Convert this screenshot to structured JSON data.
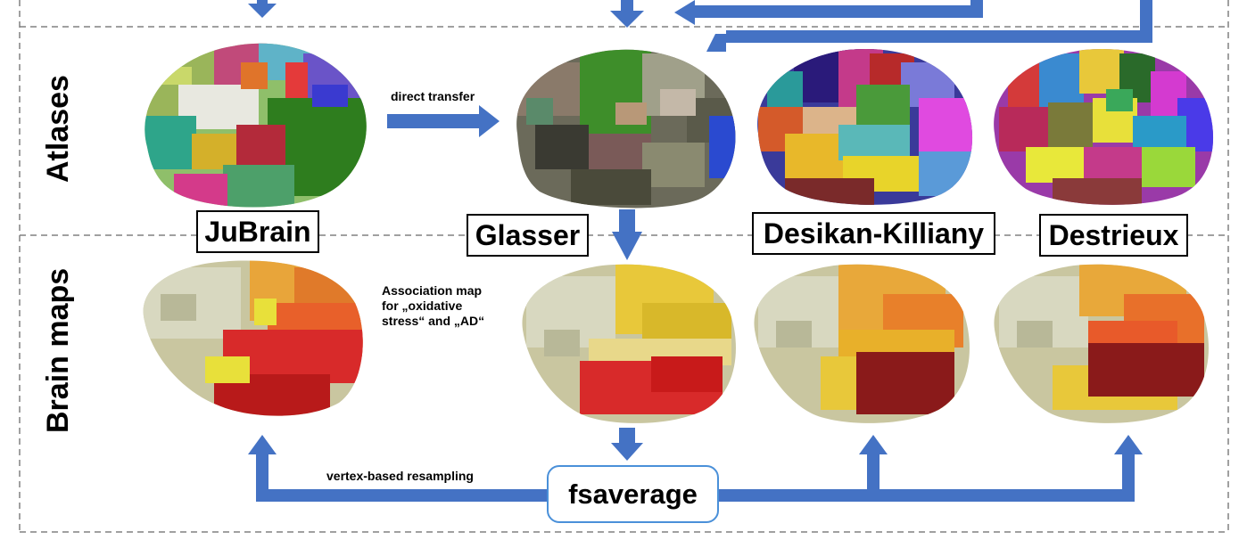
{
  "rows": {
    "atlases_label": "Atlases",
    "brain_maps_label": "Brain maps"
  },
  "atlases": [
    {
      "name": "JuBrain"
    },
    {
      "name": "Glasser"
    },
    {
      "name": "Desikan-Killiany"
    },
    {
      "name": "Destrieux"
    }
  ],
  "annotations": {
    "direct_transfer": "direct transfer",
    "association_map_lines": [
      "Association map",
      "for „oxidative",
      "stress“ and „AD“"
    ],
    "vertex_resampling": "vertex-based resampling"
  },
  "fsaverage": {
    "label": "fsaverage"
  },
  "colors": {
    "arrow": "#4472c4",
    "fs_border": "#4a90d9",
    "dashed_line": "#808080"
  },
  "brain_styles": {
    "jubrain_atlas": "multicolor-parcellation",
    "glasser_atlas": "muted-parcellation",
    "dk_atlas": "multicolor-parcellation",
    "destrieux_atlas": "multicolor-parcellation",
    "maps": "heatmap-yellow-red"
  }
}
